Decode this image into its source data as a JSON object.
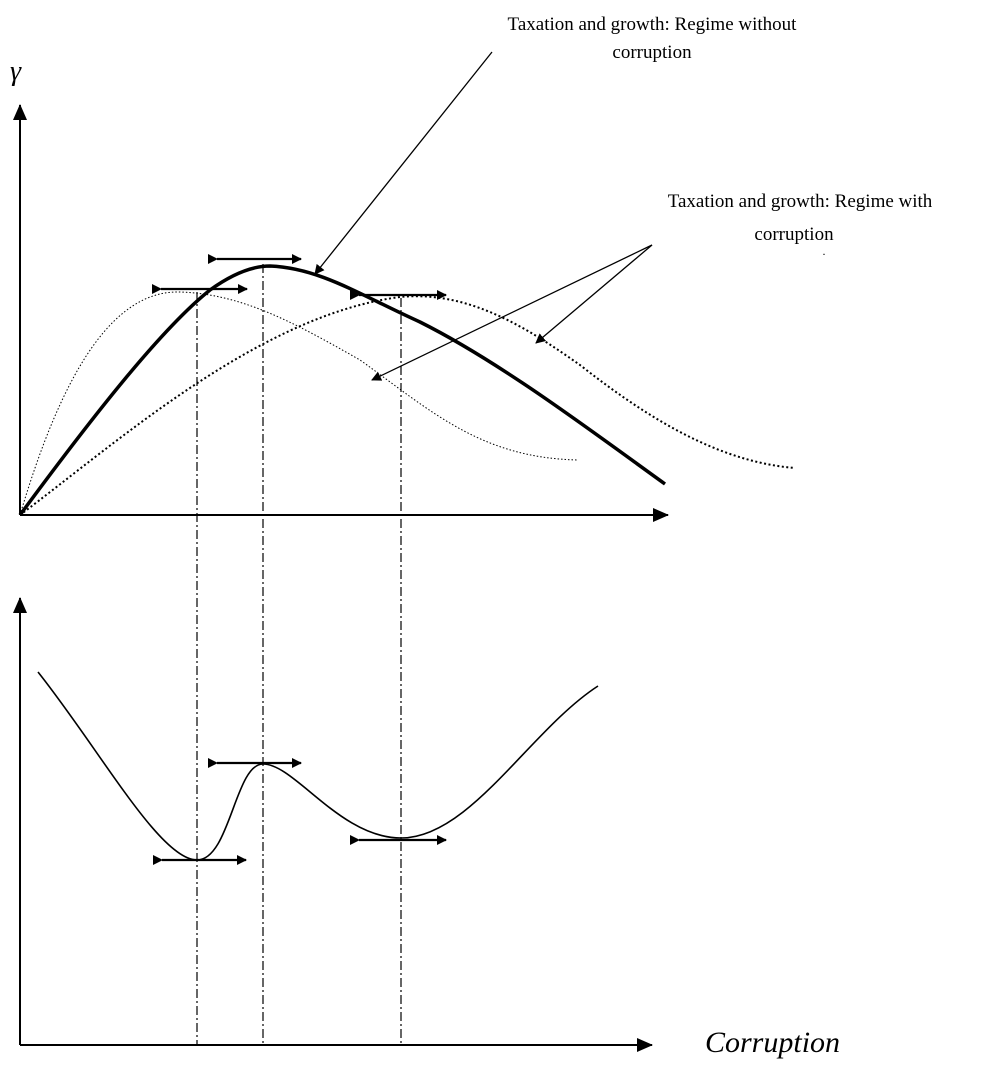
{
  "annotations": {
    "without_corruption": {
      "line1": "Taxation and growth: Regime without",
      "line2": "corruption"
    },
    "with_corruption": {
      "line1": "Taxation and growth: Regime with",
      "line2": "corruption"
    }
  },
  "axes": {
    "top_y_label": "γ",
    "bottom_x_label": "Corruption"
  },
  "colors": {
    "ink": "#000000",
    "background": "#ffffff"
  }
}
